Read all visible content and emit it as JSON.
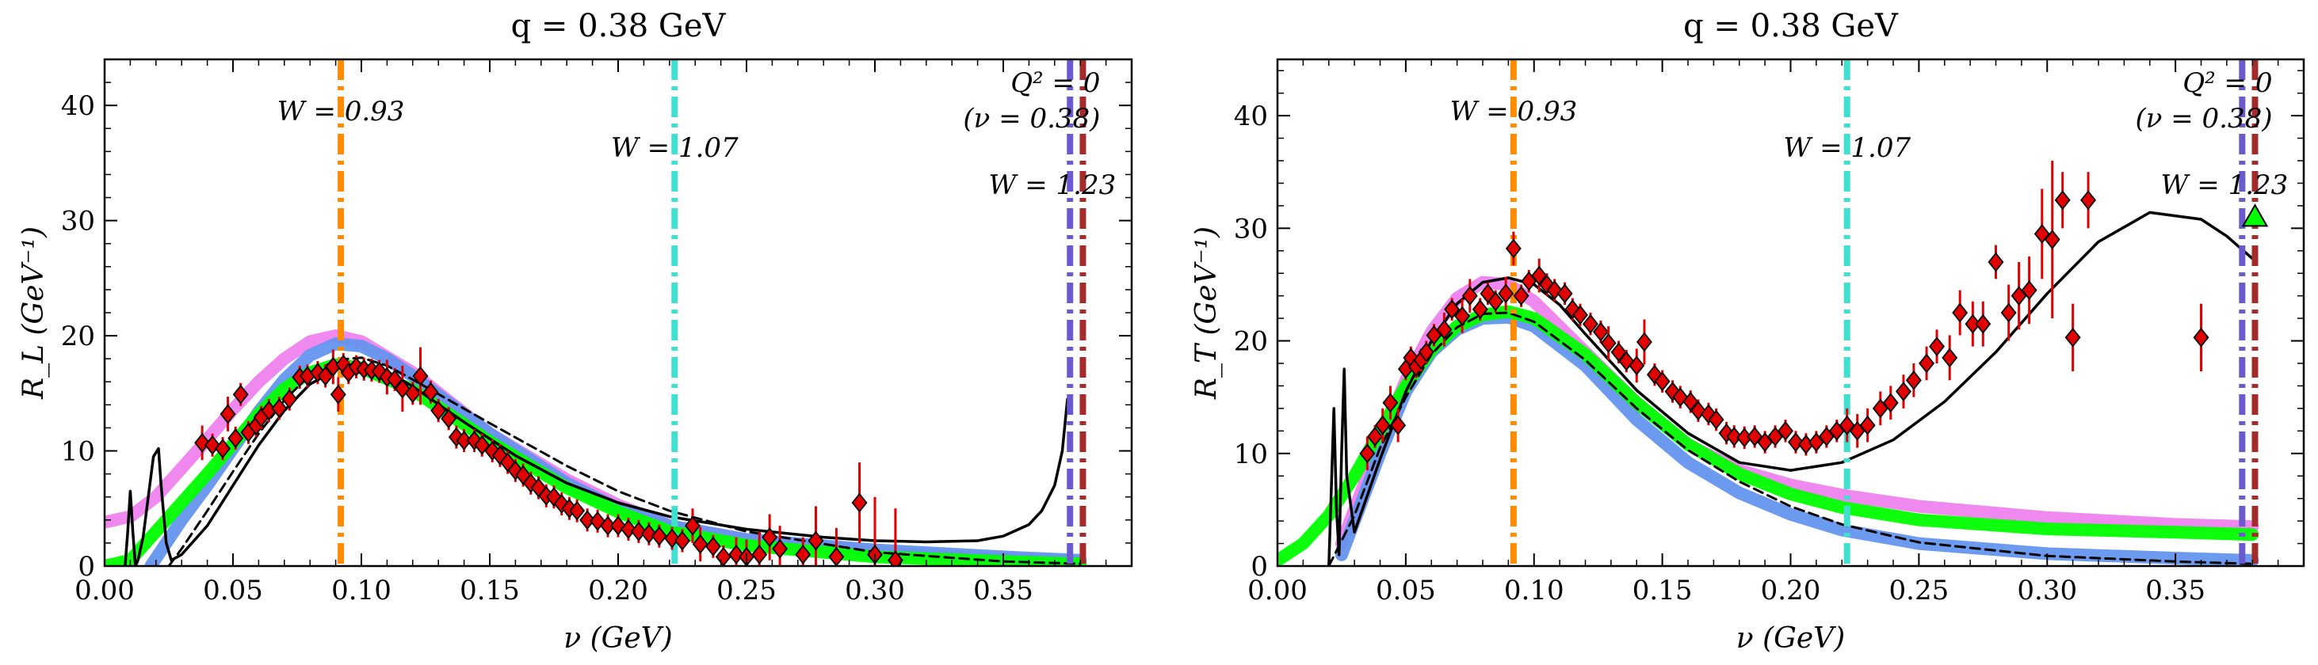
{
  "chart_data": [
    {
      "type": "line",
      "title": "q = 0.38 GeV",
      "xlabel": "ν (GeV)",
      "ylabel": "R_L (GeV⁻¹)",
      "xlim": [
        0.0,
        0.4
      ],
      "ylim": [
        0,
        44
      ],
      "xticks": [
        "0.00",
        "0.05",
        "0.10",
        "0.15",
        "0.20",
        "0.25",
        "0.30",
        "0.35"
      ],
      "yticks": [
        "0",
        "10",
        "20",
        "30",
        "40"
      ],
      "grid": false,
      "legend": "none",
      "vlines": [
        {
          "x": 0.092,
          "label": "W = 0.93",
          "color": "#ff8c00"
        },
        {
          "x": 0.222,
          "label": "W = 1.07",
          "color": "#40e0d0"
        },
        {
          "x": 0.376,
          "label": "W = 1.23",
          "color": "#6a5acd"
        },
        {
          "x": 0.381,
          "label": "Q² = 0\n(ν = 0.38)",
          "color": "#a52a2a"
        }
      ],
      "series": [
        {
          "color": "#ee82ee",
          "style": "thick",
          "x": [
            0.0,
            0.01,
            0.02,
            0.03,
            0.04,
            0.05,
            0.06,
            0.07,
            0.08,
            0.09,
            0.1,
            0.12,
            0.15,
            0.18,
            0.2,
            0.22,
            0.25,
            0.3,
            0.35,
            0.38
          ],
          "y": [
            3.8,
            4.3,
            6.0,
            8.5,
            11.0,
            13.6,
            16.0,
            18.0,
            19.5,
            20.0,
            19.5,
            16.8,
            11.5,
            7.5,
            5.3,
            3.5,
            2.3,
            1.2,
            0.6,
            0.4
          ]
        },
        {
          "color": "#6495ed",
          "style": "thick",
          "x": [
            0.018,
            0.03,
            0.04,
            0.05,
            0.06,
            0.07,
            0.08,
            0.09,
            0.1,
            0.11,
            0.12,
            0.15,
            0.18,
            0.2,
            0.22,
            0.25,
            0.3,
            0.35,
            0.38
          ],
          "y": [
            0.0,
            4.0,
            7.0,
            10.2,
            13.4,
            16.2,
            18.3,
            19.3,
            19.1,
            18.0,
            16.5,
            11.5,
            7.2,
            5.0,
            3.5,
            2.3,
            1.4,
            0.8,
            0.5
          ]
        },
        {
          "color": "#00ff00",
          "style": "thick",
          "x": [
            0.0,
            0.01,
            0.02,
            0.03,
            0.04,
            0.05,
            0.06,
            0.07,
            0.08,
            0.09,
            0.1,
            0.12,
            0.15,
            0.18,
            0.2,
            0.22,
            0.25,
            0.3,
            0.35,
            0.38
          ],
          "y": [
            0.0,
            0.5,
            3.0,
            5.5,
            8.0,
            10.6,
            13.2,
            15.4,
            16.8,
            17.5,
            17.2,
            15.3,
            10.8,
            6.8,
            4.7,
            3.0,
            1.8,
            0.8,
            0.4,
            0.2
          ]
        },
        {
          "color": "#000000",
          "style": "dashed",
          "x": [
            0.025,
            0.03,
            0.04,
            0.05,
            0.06,
            0.07,
            0.08,
            0.09,
            0.1,
            0.11,
            0.12,
            0.15,
            0.18,
            0.2,
            0.22,
            0.25,
            0.3,
            0.35,
            0.38
          ],
          "y": [
            0.0,
            1.5,
            4.8,
            8.2,
            11.5,
            14.4,
            16.6,
            17.9,
            18.1,
            17.4,
            16.2,
            12.4,
            8.7,
            6.5,
            4.8,
            3.0,
            1.2,
            0.4,
            0.2
          ]
        },
        {
          "color": "#000000",
          "style": "solid",
          "x": [
            0.008,
            0.009,
            0.01,
            0.011,
            0.012,
            0.013,
            0.015,
            0.017,
            0.019,
            0.021,
            0.022,
            0.024,
            0.026,
            0.03,
            0.04,
            0.05,
            0.06,
            0.07,
            0.08,
            0.09,
            0.1,
            0.11,
            0.12,
            0.14,
            0.16,
            0.18,
            0.2,
            0.22,
            0.25,
            0.28,
            0.3,
            0.32,
            0.34,
            0.35,
            0.36,
            0.365,
            0.37,
            0.373,
            0.375
          ],
          "y": [
            0.0,
            3.0,
            6.5,
            3.0,
            0.0,
            0.5,
            2.5,
            6.0,
            9.5,
            10.2,
            7.0,
            2.0,
            0.5,
            1.0,
            3.5,
            7.0,
            10.5,
            13.5,
            15.8,
            17.0,
            17.4,
            16.9,
            15.6,
            12.5,
            9.6,
            7.2,
            5.5,
            4.3,
            3.2,
            2.5,
            2.2,
            2.1,
            2.2,
            2.6,
            3.6,
            4.8,
            7.0,
            10.0,
            14.5
          ]
        }
      ],
      "points": {
        "color": "#e00000",
        "x": [
          0.038,
          0.042,
          0.046,
          0.048,
          0.051,
          0.053,
          0.056,
          0.059,
          0.061,
          0.064,
          0.068,
          0.072,
          0.076,
          0.079,
          0.083,
          0.086,
          0.089,
          0.091,
          0.093,
          0.095,
          0.098,
          0.101,
          0.104,
          0.107,
          0.11,
          0.113,
          0.116,
          0.12,
          0.123,
          0.127,
          0.13,
          0.134,
          0.137,
          0.14,
          0.144,
          0.147,
          0.151,
          0.154,
          0.157,
          0.16,
          0.163,
          0.166,
          0.169,
          0.172,
          0.175,
          0.178,
          0.181,
          0.184,
          0.188,
          0.192,
          0.196,
          0.2,
          0.204,
          0.208,
          0.212,
          0.216,
          0.221,
          0.225,
          0.229,
          0.232,
          0.237,
          0.241,
          0.246,
          0.25,
          0.255,
          0.259,
          0.263,
          0.272,
          0.277,
          0.285,
          0.294,
          0.3,
          0.308
        ],
        "y": [
          10.7,
          10.5,
          10.2,
          13.2,
          11.1,
          14.9,
          11.6,
          12.2,
          12.9,
          13.5,
          13.7,
          14.5,
          16.4,
          16.5,
          16.8,
          16.5,
          17.3,
          14.9,
          17.5,
          16.8,
          17.3,
          17.1,
          17.0,
          16.9,
          16.4,
          16.2,
          15.4,
          15.0,
          16.5,
          15.1,
          13.5,
          12.8,
          11.2,
          10.9,
          10.9,
          10.5,
          10.0,
          9.6,
          9.0,
          8.3,
          7.9,
          7.2,
          6.8,
          6.1,
          6.0,
          5.4,
          5.0,
          4.8,
          4.0,
          3.9,
          3.5,
          3.5,
          3.2,
          3.0,
          2.8,
          2.6,
          2.4,
          2.2,
          3.5,
          1.9,
          1.7,
          0.8,
          1.0,
          0.8,
          1.0,
          2.5,
          1.5,
          1.0,
          2.2,
          0.8,
          5.5,
          1.0,
          0.5
        ],
        "err": [
          1.5,
          1.0,
          1.0,
          1.5,
          1.0,
          1.0,
          1.0,
          1.0,
          1.0,
          1.0,
          1.0,
          1.0,
          1.0,
          1.0,
          1.0,
          1.0,
          1.5,
          1.5,
          1.0,
          1.0,
          1.0,
          1.0,
          1.0,
          1.0,
          1.5,
          1.0,
          2.0,
          1.0,
          2.5,
          1.0,
          1.0,
          1.0,
          1.0,
          1.0,
          1.0,
          1.0,
          1.0,
          1.0,
          1.0,
          1.0,
          1.0,
          1.0,
          1.0,
          1.0,
          1.0,
          1.0,
          1.0,
          1.0,
          1.0,
          1.0,
          1.0,
          1.0,
          1.0,
          1.0,
          1.0,
          1.0,
          1.0,
          1.0,
          1.5,
          1.5,
          1.0,
          1.0,
          1.5,
          1.5,
          2.0,
          2.0,
          2.0,
          1.5,
          3.0,
          2.5,
          3.5,
          5.0,
          4.5
        ]
      }
    },
    {
      "type": "line",
      "title": "q = 0.38 GeV",
      "xlabel": "ν (GeV)",
      "ylabel": "R_T (GeV⁻¹)",
      "xlim": [
        0.0,
        0.4
      ],
      "ylim": [
        0,
        45
      ],
      "xticks": [
        "0.00",
        "0.05",
        "0.10",
        "0.15",
        "0.20",
        "0.25",
        "0.30",
        "0.35"
      ],
      "yticks": [
        "0",
        "10",
        "20",
        "30",
        "40"
      ],
      "grid": false,
      "legend": "none",
      "vlines": [
        {
          "x": 0.092,
          "label": "W = 0.93",
          "color": "#ff8c00"
        },
        {
          "x": 0.222,
          "label": "W = 1.07",
          "color": "#40e0d0"
        },
        {
          "x": 0.376,
          "label": "W = 1.23",
          "color": "#6a5acd"
        },
        {
          "x": 0.381,
          "label": "Q² = 0\n(ν = 0.38)",
          "color": "#a52a2a"
        }
      ],
      "series": [
        {
          "color": "#ee82ee",
          "style": "thick",
          "x": [
            0.025,
            0.03,
            0.04,
            0.05,
            0.06,
            0.07,
            0.08,
            0.09,
            0.1,
            0.12,
            0.14,
            0.16,
            0.18,
            0.2,
            0.22,
            0.25,
            0.3,
            0.35,
            0.38
          ],
          "y": [
            2.0,
            5.0,
            11.0,
            16.5,
            20.8,
            23.8,
            25.2,
            25.0,
            23.5,
            19.0,
            14.5,
            10.8,
            8.5,
            7.2,
            6.3,
            5.3,
            4.3,
            3.7,
            3.5
          ]
        },
        {
          "color": "#6495ed",
          "style": "thick",
          "x": [
            0.025,
            0.03,
            0.04,
            0.05,
            0.06,
            0.07,
            0.08,
            0.09,
            0.1,
            0.12,
            0.14,
            0.16,
            0.18,
            0.2,
            0.22,
            0.25,
            0.3,
            0.35,
            0.38
          ],
          "y": [
            1.0,
            4.0,
            10.0,
            15.5,
            19.0,
            21.0,
            22.0,
            22.1,
            21.3,
            17.8,
            13.0,
            9.2,
            6.5,
            4.6,
            3.2,
            2.0,
            1.1,
            0.7,
            0.5
          ]
        },
        {
          "color": "#00ff00",
          "style": "thick",
          "x": [
            0.0,
            0.01,
            0.02,
            0.03,
            0.04,
            0.05,
            0.06,
            0.07,
            0.08,
            0.09,
            0.1,
            0.12,
            0.14,
            0.16,
            0.18,
            0.2,
            0.22,
            0.25,
            0.3,
            0.35,
            0.38
          ],
          "y": [
            0.5,
            2.0,
            4.5,
            8.0,
            12.0,
            16.0,
            19.2,
            21.3,
            22.3,
            22.6,
            22.0,
            18.8,
            14.5,
            10.8,
            8.2,
            6.4,
            5.2,
            4.1,
            3.3,
            3.0,
            2.8
          ]
        },
        {
          "color": "#000000",
          "style": "dashed",
          "x": [
            0.02,
            0.03,
            0.04,
            0.05,
            0.06,
            0.07,
            0.08,
            0.09,
            0.1,
            0.12,
            0.14,
            0.16,
            0.18,
            0.2,
            0.22,
            0.25,
            0.3,
            0.35,
            0.38
          ],
          "y": [
            0.0,
            4.5,
            10.5,
            15.0,
            18.8,
            21.2,
            22.4,
            22.5,
            21.7,
            18.3,
            14.0,
            10.3,
            7.5,
            5.3,
            3.7,
            2.1,
            0.9,
            0.4,
            0.2
          ]
        },
        {
          "color": "#000000",
          "style": "solid",
          "x": [
            0.02,
            0.021,
            0.022,
            0.023,
            0.024,
            0.025,
            0.026,
            0.027,
            0.03,
            0.04,
            0.05,
            0.06,
            0.07,
            0.08,
            0.09,
            0.1,
            0.11,
            0.12,
            0.14,
            0.16,
            0.18,
            0.2,
            0.22,
            0.24,
            0.26,
            0.28,
            0.3,
            0.32,
            0.34,
            0.36,
            0.37,
            0.38
          ],
          "y": [
            0.0,
            7.0,
            14.0,
            5.0,
            1.0,
            10.0,
            17.5,
            8.0,
            3.0,
            9.5,
            15.5,
            20.0,
            23.3,
            25.2,
            25.6,
            25.0,
            23.2,
            20.6,
            15.6,
            11.8,
            9.2,
            8.5,
            9.2,
            11.2,
            14.6,
            19.0,
            24.2,
            28.8,
            31.4,
            30.8,
            29.3,
            27.3
          ]
        }
      ],
      "points": {
        "color": "#e00000",
        "x": [
          0.035,
          0.038,
          0.041,
          0.044,
          0.047,
          0.05,
          0.052,
          0.054,
          0.056,
          0.058,
          0.061,
          0.065,
          0.068,
          0.072,
          0.075,
          0.079,
          0.082,
          0.085,
          0.089,
          0.092,
          0.095,
          0.098,
          0.102,
          0.105,
          0.108,
          0.112,
          0.115,
          0.118,
          0.122,
          0.126,
          0.129,
          0.133,
          0.136,
          0.14,
          0.143,
          0.147,
          0.15,
          0.154,
          0.157,
          0.161,
          0.164,
          0.168,
          0.171,
          0.175,
          0.178,
          0.182,
          0.186,
          0.19,
          0.194,
          0.198,
          0.202,
          0.206,
          0.21,
          0.214,
          0.218,
          0.222,
          0.226,
          0.23,
          0.235,
          0.239,
          0.244,
          0.248,
          0.253,
          0.257,
          0.262,
          0.266,
          0.271,
          0.275,
          0.28,
          0.285,
          0.289,
          0.293,
          0.298,
          0.302,
          0.306,
          0.31,
          0.316,
          0.36
        ],
        "y": [
          10.0,
          11.5,
          12.5,
          14.5,
          12.5,
          17.5,
          18.5,
          17.7,
          18.3,
          19.0,
          20.5,
          21.0,
          22.8,
          22.2,
          24.0,
          22.8,
          24.2,
          23.5,
          24.2,
          28.2,
          24.0,
          25.3,
          25.8,
          25.0,
          24.5,
          24.2,
          22.8,
          22.3,
          21.5,
          20.8,
          19.8,
          19.0,
          18.2,
          17.8,
          19.9,
          17.0,
          16.4,
          15.5,
          15.0,
          14.6,
          13.8,
          13.5,
          13.0,
          11.8,
          11.5,
          11.4,
          11.5,
          11.0,
          11.5,
          12.0,
          11.0,
          10.8,
          11.0,
          11.5,
          12.0,
          12.5,
          12.0,
          12.5,
          14.0,
          14.5,
          15.5,
          16.5,
          18.0,
          19.5,
          18.5,
          22.5,
          21.5,
          21.5,
          27.0,
          22.5,
          24.0,
          24.5,
          29.5,
          29.0,
          32.5,
          20.3,
          32.5,
          20.3
        ],
        "err": [
          1.5,
          1.0,
          1.5,
          1.5,
          1.5,
          1.0,
          1.0,
          1.0,
          1.0,
          1.0,
          1.0,
          1.5,
          1.0,
          1.5,
          1.5,
          1.0,
          1.0,
          1.0,
          1.5,
          1.5,
          1.0,
          1.0,
          1.5,
          1.0,
          1.0,
          1.0,
          1.0,
          1.0,
          1.0,
          1.0,
          1.5,
          1.0,
          1.0,
          1.5,
          2.0,
          1.0,
          1.0,
          1.0,
          1.0,
          1.0,
          1.0,
          1.0,
          1.0,
          1.0,
          1.0,
          1.0,
          1.0,
          1.0,
          1.0,
          1.0,
          1.0,
          1.0,
          1.0,
          1.0,
          1.0,
          1.5,
          1.5,
          1.5,
          1.5,
          1.5,
          1.5,
          1.5,
          1.5,
          1.5,
          2.0,
          2.0,
          2.0,
          2.0,
          1.5,
          2.5,
          3.0,
          3.0,
          4.0,
          7.0,
          2.5,
          3.0,
          2.5,
          3.0
        ]
      },
      "markers": [
        {
          "x": 0.381,
          "y": 31.0,
          "color": "#00ff00",
          "shape": "triangle"
        }
      ]
    }
  ]
}
